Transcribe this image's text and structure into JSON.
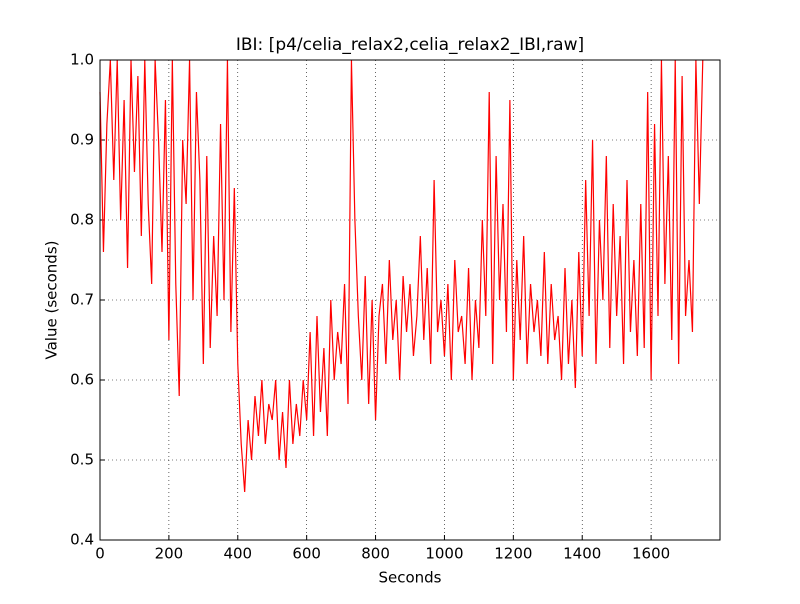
{
  "chart_data": {
    "type": "line",
    "title": "IBI: [p4/celia_relax2,celia_relax2_IBI,raw]",
    "x_label": "Seconds",
    "y_label": "Value (seconds)",
    "color": "#ff0000",
    "grid": true,
    "xlim": [
      0,
      1800
    ],
    "ylim": [
      0.4,
      1.0
    ],
    "xticks": [
      0,
      200,
      400,
      600,
      800,
      1000,
      1200,
      1400,
      1600
    ],
    "yticks": [
      0.4,
      0.5,
      0.6,
      0.7,
      0.8,
      0.9,
      {
        "value": 1,
        "label": "1.0"
      }
    ],
    "x": [
      0,
      10,
      20,
      30,
      40,
      50,
      60,
      70,
      80,
      90,
      100,
      110,
      120,
      130,
      140,
      150,
      160,
      170,
      180,
      190,
      200,
      210,
      220,
      230,
      240,
      250,
      260,
      270,
      280,
      290,
      300,
      310,
      320,
      330,
      340,
      350,
      360,
      370,
      380,
      390,
      400,
      410,
      420,
      430,
      440,
      450,
      460,
      470,
      480,
      490,
      500,
      510,
      520,
      530,
      540,
      550,
      560,
      570,
      580,
      590,
      600,
      610,
      620,
      630,
      640,
      650,
      660,
      670,
      680,
      690,
      700,
      710,
      720,
      730,
      740,
      750,
      760,
      770,
      780,
      790,
      800,
      810,
      820,
      830,
      840,
      850,
      860,
      870,
      880,
      890,
      900,
      910,
      920,
      930,
      940,
      950,
      960,
      970,
      980,
      990,
      1000,
      1010,
      1020,
      1030,
      1040,
      1050,
      1060,
      1070,
      1080,
      1090,
      1100,
      1110,
      1120,
      1130,
      1140,
      1150,
      1160,
      1170,
      1180,
      1190,
      1200,
      1210,
      1220,
      1230,
      1240,
      1250,
      1260,
      1270,
      1280,
      1290,
      1300,
      1310,
      1320,
      1330,
      1340,
      1350,
      1360,
      1370,
      1380,
      1390,
      1400,
      1410,
      1420,
      1430,
      1440,
      1450,
      1460,
      1470,
      1480,
      1490,
      1500,
      1510,
      1520,
      1530,
      1540,
      1550,
      1560,
      1570,
      1580,
      1590,
      1600,
      1610,
      1620,
      1630,
      1640,
      1650,
      1660,
      1670,
      1680,
      1690,
      1700,
      1710,
      1720,
      1730,
      1740,
      1750
    ],
    "values": [
      0.96,
      0.76,
      0.92,
      1.0,
      0.85,
      1.0,
      0.8,
      0.95,
      0.74,
      1.0,
      0.86,
      0.98,
      0.78,
      1.0,
      0.82,
      0.72,
      1.0,
      0.9,
      0.76,
      0.95,
      0.65,
      1.0,
      0.72,
      0.58,
      0.9,
      0.82,
      1.0,
      0.7,
      0.96,
      0.85,
      0.62,
      0.88,
      0.64,
      0.78,
      0.68,
      0.92,
      0.7,
      1.0,
      0.66,
      0.84,
      0.62,
      0.52,
      0.46,
      0.55,
      0.5,
      0.58,
      0.53,
      0.6,
      0.52,
      0.57,
      0.55,
      0.6,
      0.5,
      0.56,
      0.49,
      0.6,
      0.52,
      0.57,
      0.53,
      0.6,
      0.55,
      0.66,
      0.53,
      0.68,
      0.56,
      0.64,
      0.53,
      0.7,
      0.6,
      0.66,
      0.62,
      0.72,
      0.57,
      1.0,
      0.8,
      0.68,
      0.6,
      0.73,
      0.57,
      0.7,
      0.55,
      0.68,
      0.72,
      0.62,
      0.75,
      0.65,
      0.7,
      0.6,
      0.73,
      0.66,
      0.72,
      0.63,
      0.68,
      0.78,
      0.65,
      0.74,
      0.62,
      0.85,
      0.66,
      0.7,
      0.63,
      0.72,
      0.6,
      0.75,
      0.66,
      0.68,
      0.62,
      0.74,
      0.6,
      0.7,
      0.64,
      0.8,
      0.68,
      0.96,
      0.62,
      0.88,
      0.7,
      0.82,
      0.66,
      0.95,
      0.6,
      0.75,
      0.65,
      0.78,
      0.62,
      0.72,
      0.66,
      0.7,
      0.63,
      0.76,
      0.62,
      0.72,
      0.65,
      0.68,
      0.6,
      0.74,
      0.62,
      0.7,
      0.59,
      0.76,
      0.63,
      0.85,
      0.68,
      0.9,
      0.62,
      0.8,
      0.7,
      0.88,
      0.64,
      0.82,
      0.68,
      0.78,
      0.62,
      0.85,
      0.66,
      0.75,
      0.63,
      0.82,
      0.64,
      0.96,
      0.6,
      0.92,
      0.68,
      1.0,
      0.72,
      0.88,
      0.65,
      1.0,
      0.62,
      0.98,
      0.68,
      0.75,
      0.66,
      1.0,
      0.82,
      1.0
    ]
  }
}
